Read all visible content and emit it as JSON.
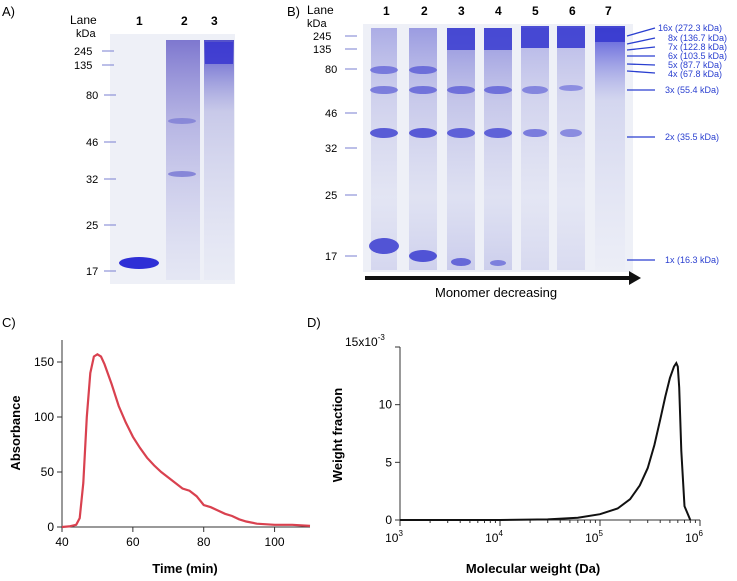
{
  "panel_a": {
    "label": "A)",
    "lane_header": "Lane",
    "unit_header": "kDa",
    "lanes": [
      "1",
      "2",
      "3"
    ],
    "markers": [
      "245",
      "135",
      "80",
      "46",
      "32",
      "25",
      "17"
    ]
  },
  "panel_b": {
    "label": "B)",
    "lane_header": "Lane",
    "unit_header": "kDa",
    "lanes": [
      "1",
      "2",
      "3",
      "4",
      "5",
      "6",
      "7"
    ],
    "markers": [
      "245",
      "135",
      "80",
      "46",
      "32",
      "25",
      "17"
    ],
    "arrow_label": "Monomer decreasing",
    "band_labels": [
      "16x (272.3 kDa)",
      "8x (136.7 kDa)",
      "7x (122.8 kDa)",
      "6x (103.5 kDa)",
      "5x (87.7 kDa)",
      "4x (67.8 kDa)",
      "3x (55.4 kDa)",
      "2x (35.5 kDa)",
      "1x (16.3 kDa)"
    ],
    "band_color": "#2a3fd0"
  },
  "chart_data": [
    {
      "panel": "C)",
      "type": "line",
      "title": "",
      "xlabel": "Time (min)",
      "ylabel": "Absorbance",
      "xlim": [
        40,
        110
      ],
      "ylim": [
        0,
        170
      ],
      "xticks": [
        40,
        60,
        80,
        100
      ],
      "yticks": [
        0,
        50,
        100,
        150
      ],
      "color": "#d9414f",
      "series": [
        {
          "name": "Absorbance",
          "x": [
            40,
            42,
            44,
            45,
            46,
            47,
            48,
            49,
            50,
            51,
            52,
            54,
            56,
            58,
            60,
            62,
            64,
            66,
            68,
            70,
            72,
            74,
            76,
            78,
            80,
            82,
            84,
            86,
            88,
            90,
            92,
            95,
            100,
            105,
            110
          ],
          "y": [
            0,
            0.5,
            2,
            8,
            40,
            100,
            140,
            155,
            157,
            155,
            148,
            130,
            110,
            95,
            82,
            72,
            63,
            56,
            50,
            45,
            40,
            35,
            33,
            28,
            20,
            18,
            15,
            12,
            10,
            7,
            5,
            3,
            2,
            2,
            1
          ]
        }
      ]
    },
    {
      "panel": "D)",
      "type": "line",
      "title": "",
      "xlabel": "Molecular weight (Da)",
      "ylabel": "Weight fraction",
      "xscale": "log",
      "xlim": [
        1000,
        1000000
      ],
      "ylim": [
        0,
        15
      ],
      "y_multiplier_label": "15x10",
      "y_multiplier_exp": "-3",
      "xtick_bases": [
        "10",
        "10",
        "10",
        "10"
      ],
      "xtick_exps": [
        "3",
        "4",
        "5",
        "6"
      ],
      "yticks": [
        0,
        5,
        10
      ],
      "color": "#111111",
      "series": [
        {
          "name": "Weight fraction",
          "x": [
            1000,
            10000,
            30000,
            60000,
            100000,
            150000,
            200000,
            250000,
            300000,
            350000,
            400000,
            450000,
            500000,
            550000,
            580000,
            600000,
            620000,
            650000,
            700000,
            800000
          ],
          "y": [
            0,
            0,
            0.05,
            0.2,
            0.5,
            1.0,
            1.8,
            3.0,
            4.5,
            6.5,
            8.7,
            10.7,
            12.3,
            13.3,
            13.6,
            13.3,
            11.5,
            6.0,
            1.2,
            0
          ]
        }
      ]
    }
  ]
}
